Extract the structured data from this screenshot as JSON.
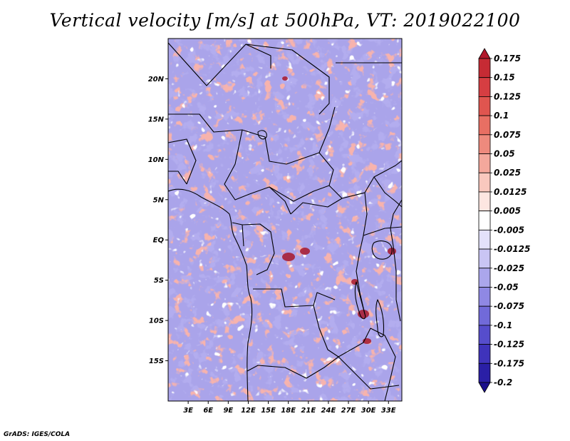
{
  "title": "Vertical velocity [m/s] at 500hPa, VT: 2019022100",
  "credit": "GrADS: IGES/COLA",
  "map": {
    "lon_range": [
      0,
      35
    ],
    "lat_range": [
      -20,
      25
    ],
    "lon_tick_labels": [
      "3E",
      "6E",
      "9E",
      "12E",
      "15E",
      "18E",
      "21E",
      "24E",
      "27E",
      "30E",
      "33E"
    ],
    "lat_tick_labels": [
      "20N",
      "15N",
      "10N",
      "5N",
      "EQ",
      "5S",
      "10S",
      "15S"
    ]
  },
  "colorbar": {
    "labels": [
      "0.175",
      "0.15",
      "0.125",
      "0.1",
      "0.075",
      "0.05",
      "0.025",
      "0.0125",
      "0.005",
      "-0.005",
      "-0.0125",
      "-0.025",
      "-0.05",
      "-0.075",
      "-0.1",
      "-0.125",
      "-0.175",
      "-0.2"
    ],
    "colors": [
      "#b2182b",
      "#c62b34",
      "#d63e42",
      "#e0554f",
      "#e86f63",
      "#ee8a7d",
      "#f4a89c",
      "#f9c8be",
      "#fde6e1",
      "#ffffff",
      "#e3e1fb",
      "#c9c5f4",
      "#aba6ec",
      "#8f88e4",
      "#716ad9",
      "#564dcc",
      "#3f33bb",
      "#2a1fa6",
      "#1a0f8c"
    ]
  }
}
